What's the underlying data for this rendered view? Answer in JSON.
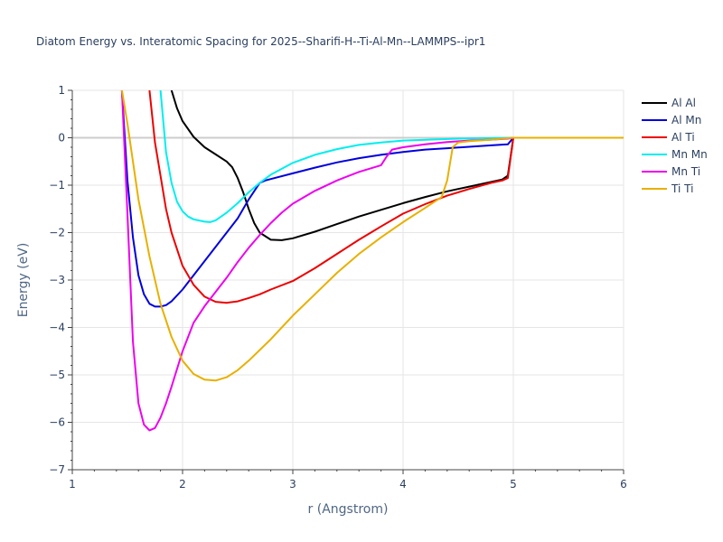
{
  "chart_data": {
    "type": "line",
    "title": "Diatom Energy vs. Interatomic Spacing for 2025--Sharifi-H--Ti-Al-Mn--LAMMPS--ipr1",
    "xlabel": "r (Angstrom)",
    "ylabel": "Energy (eV)",
    "xlim": [
      1,
      6
    ],
    "ylim": [
      -7,
      1
    ],
    "xticks": [
      1,
      2,
      3,
      4,
      5,
      6
    ],
    "xtick_labels": [
      "1",
      "2",
      "3",
      "4",
      "5",
      "6"
    ],
    "yticks": [
      1,
      0,
      -1,
      -2,
      -3,
      -4,
      -5,
      -6,
      -7
    ],
    "ytick_labels": [
      "1",
      "0",
      "−1",
      "−2",
      "−3",
      "−4",
      "−5",
      "−6",
      "−7"
    ],
    "grid": true,
    "legend_position": "top-right",
    "series": [
      {
        "name": "Al Al",
        "color": "#000000",
        "x": [
          1.9,
          1.95,
          2.0,
          2.1,
          2.2,
          2.3,
          2.4,
          2.45,
          2.5,
          2.55,
          2.6,
          2.65,
          2.7,
          2.8,
          2.9,
          3.0,
          3.2,
          3.4,
          3.6,
          3.8,
          4.0,
          4.2,
          4.4,
          4.6,
          4.8,
          4.9,
          4.95,
          5.0,
          5.5,
          6.0
        ],
        "y": [
          1.0,
          0.62,
          0.35,
          0.02,
          -0.2,
          -0.35,
          -0.5,
          -0.62,
          -0.85,
          -1.15,
          -1.5,
          -1.8,
          -2.0,
          -2.15,
          -2.16,
          -2.12,
          -1.98,
          -1.82,
          -1.66,
          -1.52,
          -1.38,
          -1.25,
          -1.13,
          -1.03,
          -0.93,
          -0.88,
          -0.8,
          0.0,
          0.0,
          0.0
        ]
      },
      {
        "name": "Al Mn",
        "color": "#0000dd",
        "x": [
          1.45,
          1.5,
          1.55,
          1.6,
          1.65,
          1.7,
          1.75,
          1.8,
          1.85,
          1.9,
          2.0,
          2.1,
          2.2,
          2.3,
          2.4,
          2.5,
          2.6,
          2.7,
          2.75,
          2.8,
          3.0,
          3.2,
          3.4,
          3.6,
          3.8,
          4.0,
          4.2,
          4.4,
          4.6,
          4.8,
          4.95,
          5.0,
          5.5,
          6.0
        ],
        "y": [
          1.0,
          -0.9,
          -2.1,
          -2.9,
          -3.3,
          -3.5,
          -3.56,
          -3.56,
          -3.53,
          -3.45,
          -3.2,
          -2.9,
          -2.6,
          -2.3,
          -2.0,
          -1.7,
          -1.3,
          -0.95,
          -0.9,
          -0.87,
          -0.75,
          -0.63,
          -0.52,
          -0.43,
          -0.36,
          -0.3,
          -0.25,
          -0.22,
          -0.19,
          -0.16,
          -0.14,
          0.0,
          0.0,
          0.0
        ]
      },
      {
        "name": "Al Ti",
        "color": "#ee0000",
        "x": [
          1.7,
          1.75,
          1.8,
          1.85,
          1.9,
          2.0,
          2.1,
          2.2,
          2.3,
          2.4,
          2.5,
          2.6,
          2.7,
          2.8,
          3.0,
          3.2,
          3.4,
          3.6,
          3.8,
          4.0,
          4.2,
          4.4,
          4.6,
          4.8,
          4.9,
          4.95,
          5.0,
          5.5,
          6.0
        ],
        "y": [
          1.0,
          -0.1,
          -0.8,
          -1.5,
          -2.0,
          -2.7,
          -3.1,
          -3.35,
          -3.46,
          -3.48,
          -3.45,
          -3.38,
          -3.3,
          -3.2,
          -3.02,
          -2.75,
          -2.45,
          -2.15,
          -1.87,
          -1.6,
          -1.4,
          -1.22,
          -1.08,
          -0.95,
          -0.9,
          -0.85,
          0.0,
          0.0,
          0.0
        ]
      },
      {
        "name": "Mn Mn",
        "color": "#00eeee",
        "x": [
          1.8,
          1.85,
          1.9,
          1.95,
          2.0,
          2.05,
          2.1,
          2.2,
          2.25,
          2.3,
          2.4,
          2.5,
          2.6,
          2.7,
          2.8,
          3.0,
          3.2,
          3.4,
          3.6,
          3.8,
          4.0,
          4.5,
          5.0,
          5.5,
          6.0
        ],
        "y": [
          1.0,
          -0.3,
          -0.95,
          -1.35,
          -1.55,
          -1.66,
          -1.72,
          -1.77,
          -1.78,
          -1.74,
          -1.58,
          -1.38,
          -1.15,
          -0.95,
          -0.78,
          -0.53,
          -0.36,
          -0.24,
          -0.15,
          -0.1,
          -0.06,
          -0.02,
          0.0,
          0.0,
          0.0
        ]
      },
      {
        "name": "Mn Ti",
        "color": "#ee00ee",
        "x": [
          1.45,
          1.5,
          1.55,
          1.6,
          1.65,
          1.7,
          1.75,
          1.8,
          1.85,
          1.9,
          2.0,
          2.1,
          2.2,
          2.3,
          2.4,
          2.5,
          2.6,
          2.7,
          2.8,
          2.9,
          3.0,
          3.2,
          3.4,
          3.6,
          3.8,
          3.85,
          3.9,
          4.0,
          4.2,
          4.4,
          4.6,
          4.8,
          4.95,
          5.0,
          5.5,
          6.0
        ],
        "y": [
          1.0,
          -1.6,
          -4.3,
          -5.6,
          -6.05,
          -6.17,
          -6.12,
          -5.9,
          -5.6,
          -5.25,
          -4.5,
          -3.9,
          -3.55,
          -3.25,
          -2.95,
          -2.62,
          -2.32,
          -2.05,
          -1.8,
          -1.58,
          -1.39,
          -1.12,
          -0.9,
          -0.72,
          -0.58,
          -0.4,
          -0.25,
          -0.2,
          -0.14,
          -0.09,
          -0.06,
          -0.04,
          -0.02,
          0.0,
          0.0,
          0.0
        ]
      },
      {
        "name": "Ti Ti",
        "color": "#e8b000",
        "x": [
          1.45,
          1.5,
          1.6,
          1.7,
          1.8,
          1.9,
          2.0,
          2.1,
          2.2,
          2.3,
          2.4,
          2.5,
          2.6,
          2.8,
          3.0,
          3.2,
          3.4,
          3.6,
          3.8,
          4.0,
          4.2,
          4.35,
          4.4,
          4.45,
          4.5,
          4.6,
          4.8,
          5.0,
          5.5,
          6.0
        ],
        "y": [
          1.0,
          0.3,
          -1.3,
          -2.5,
          -3.5,
          -4.2,
          -4.7,
          -4.98,
          -5.1,
          -5.12,
          -5.05,
          -4.9,
          -4.7,
          -4.25,
          -3.75,
          -3.3,
          -2.85,
          -2.45,
          -2.1,
          -1.78,
          -1.48,
          -1.25,
          -0.9,
          -0.2,
          -0.1,
          -0.07,
          -0.04,
          0.0,
          0.0,
          0.0
        ]
      }
    ]
  }
}
